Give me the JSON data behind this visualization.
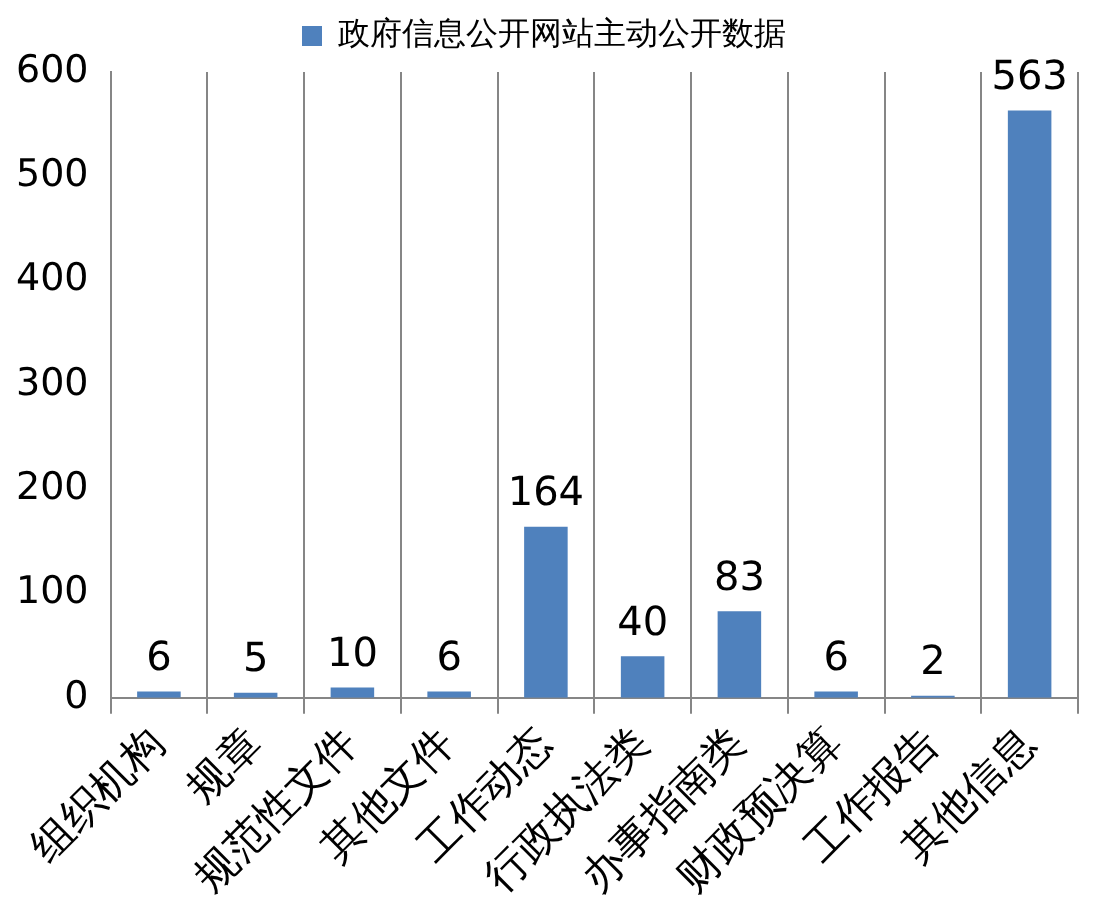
{
  "chart_data": {
    "type": "bar",
    "categories": [
      "组织机构",
      "规章",
      "规范性文件",
      "其他文件",
      "工作动态",
      "行政执法类",
      "办事指南类",
      "财政预决算",
      "工作报告",
      "其他信息"
    ],
    "series": [
      {
        "name": "政府信息公开网站主动公开数据",
        "color": "#4f81bd",
        "values": [
          6,
          5,
          10,
          6,
          164,
          40,
          83,
          6,
          2,
          563
        ]
      }
    ],
    "ylim": [
      0,
      600
    ],
    "yticks": [
      0,
      100,
      200,
      300,
      400,
      500,
      600
    ],
    "grid": "x",
    "legend": "top",
    "data_labels": true
  }
}
